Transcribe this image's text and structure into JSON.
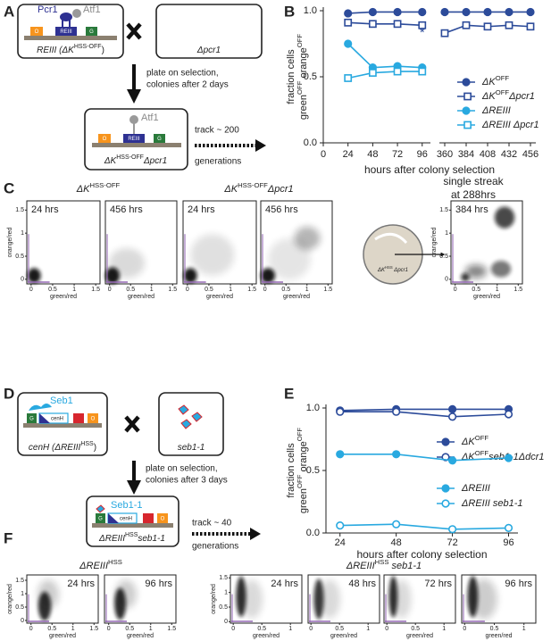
{
  "panel_labels": [
    "A",
    "B",
    "C",
    "D",
    "E",
    "F"
  ],
  "panel_a": {
    "proteins": [
      "Pcr1",
      "Atf1"
    ],
    "genes": [
      "O",
      "REIII",
      "G"
    ],
    "strain1": [
      {
        "text": "REIII (",
        "italic": true
      },
      {
        "text": "ΔK",
        "italic": true
      },
      {
        "text": "HSS-OFF",
        "sup": true
      },
      {
        "text": ")"
      }
    ],
    "strain2": [
      {
        "text": "Δpcr1",
        "italic": true
      }
    ],
    "step": [
      "plate on selection,",
      "colonies after 2 days"
    ],
    "result_protein": "Atf1",
    "result_genes": [
      "O",
      "REIII",
      "G"
    ],
    "result_strain": [
      {
        "text": "ΔK",
        "italic": true
      },
      {
        "text": "HSS-OFF",
        "sup": true
      },
      {
        "text": "Δpcr1",
        "italic": true
      }
    ],
    "track": [
      "track ~ 200",
      "generations"
    ]
  },
  "panel_c": {
    "headers": [
      [
        {
          "text": "ΔK",
          "italic": true
        },
        {
          "text": "HSS-OFF",
          "sup": true
        }
      ],
      [
        {
          "text": "ΔK",
          "italic": true
        },
        {
          "text": "HSS-OFF",
          "sup": true
        },
        {
          "text": "Δpcr1",
          "italic": true
        }
      ]
    ],
    "streak": [
      "single streak",
      "at 288hrs"
    ],
    "dish_label": [
      {
        "text": "ΔK",
        "italic": true
      },
      {
        "text": "HSS",
        "sup": true
      },
      {
        "text": " Δpcr1",
        "italic": true
      }
    ]
  },
  "panel_d": {
    "proteins": [
      "Seb1"
    ],
    "genes": [
      "G",
      "cenH",
      "O"
    ],
    "strain1": [
      {
        "text": "cenH (",
        "italic": true
      },
      {
        "text": "ΔREIII",
        "italic": true
      },
      {
        "text": "HSS",
        "sup": true
      },
      {
        "text": ")"
      }
    ],
    "strain2": [
      {
        "text": "seb1-1",
        "italic": true
      }
    ],
    "step": [
      "plate on selection,",
      "colonies after 3 days"
    ],
    "result_protein": "Seb1-1",
    "result_genes": [
      "G",
      "cenH",
      "O"
    ],
    "result_strain": [
      {
        "text": "ΔREIII",
        "italic": true
      },
      {
        "text": "HSS",
        "sup": true
      },
      {
        "text": "seb1-1",
        "italic": true
      }
    ],
    "track": [
      "track ~ 40",
      "generations"
    ]
  },
  "panel_f": {
    "headers": [
      [
        {
          "text": "ΔREIII",
          "italic": true
        },
        {
          "text": "HSS",
          "sup": true
        }
      ],
      [
        {
          "text": "ΔREIII",
          "italic": true
        },
        {
          "text": "HSS",
          "sup": true
        },
        {
          "text": " seb1-1",
          "italic": true
        }
      ]
    ]
  },
  "chart_data": [
    {
      "type": "line",
      "x": [
        24,
        48,
        72,
        96,
        360,
        384,
        408,
        432,
        456
      ],
      "x_segments": [
        {
          "xlim": [
            0,
            104
          ],
          "xticks": [
            0,
            24,
            48,
            72,
            96
          ]
        },
        {
          "xlim": [
            354,
            462
          ],
          "xticks": [
            360,
            384,
            408,
            432,
            456
          ]
        }
      ],
      "ylim": [
        0,
        1
      ],
      "yticks": [
        {
          "value": 0,
          "label": "0.0"
        },
        {
          "value": 0.5,
          "label": "0.5"
        },
        {
          "value": 1,
          "label": "1.0"
        }
      ],
      "xlabel": "hours after colony selection",
      "ylabel": [
        [
          {
            "text": "fraction cells"
          }
        ],
        [
          {
            "text": "green"
          },
          {
            "text": "OFF",
            "sup": true
          },
          {
            "text": " orange"
          },
          {
            "text": "OFF",
            "sup": true
          }
        ]
      ],
      "legend": "right",
      "series": [
        {
          "name": [
            {
              "text": "ΔK",
              "italic": true
            },
            {
              "text": "OFF",
              "sup": true
            }
          ],
          "color": "#2c4b9a",
          "marker": "circle",
          "filled": true,
          "values": [
            0.98,
            0.99,
            0.99,
            0.99,
            0.99,
            0.99,
            0.99,
            0.99,
            0.99
          ]
        },
        {
          "name": [
            {
              "text": "ΔK",
              "italic": true
            },
            {
              "text": "OFF",
              "sup": true
            },
            {
              "text": "Δpcr1",
              "italic": true
            }
          ],
          "color": "#2c4b9a",
          "marker": "square",
          "filled": false,
          "values": [
            0.91,
            0.9,
            0.9,
            0.89,
            0.83,
            0.89,
            0.88,
            0.89,
            0.88
          ]
        },
        {
          "name": [
            {
              "text": "ΔREIII",
              "italic": true
            }
          ],
          "color": "#29a9e0",
          "marker": "circle",
          "filled": true,
          "values": [
            0.75,
            0.57,
            0.58,
            0.57,
            null,
            null,
            null,
            null,
            null
          ]
        },
        {
          "name": [
            {
              "text": "ΔREIII Δpcr1",
              "italic": true
            }
          ],
          "color": "#29a9e0",
          "marker": "square",
          "filled": false,
          "values": [
            0.49,
            0.53,
            0.54,
            0.54,
            null,
            null,
            null,
            null,
            null
          ]
        }
      ],
      "annotations": [
        {
          "text": "*",
          "x": 96,
          "y": 0.85
        }
      ]
    },
    {
      "type": "line",
      "x": [
        24,
        48,
        72,
        96
      ],
      "xlim": [
        18,
        100
      ],
      "xticks": [
        24,
        48,
        72,
        96
      ],
      "ylim": [
        0,
        1
      ],
      "yticks": [
        {
          "value": 0,
          "label": "0.0"
        },
        {
          "value": 0.5,
          "label": "0.5"
        },
        {
          "value": 1,
          "label": "1.0"
        }
      ],
      "xlabel": "hours after colony selection",
      "ylabel": [
        [
          {
            "text": "fraction cells"
          }
        ],
        [
          {
            "text": "green"
          },
          {
            "text": "OFF",
            "sup": true
          },
          {
            "text": " orange"
          },
          {
            "text": "OFF",
            "sup": true
          }
        ]
      ],
      "legend": "right",
      "series": [
        {
          "name": [
            {
              "text": "ΔK",
              "italic": true
            },
            {
              "text": "OFF",
              "sup": true
            }
          ],
          "color": "#2c4b9a",
          "marker": "circle",
          "filled": true,
          "values": [
            0.98,
            0.99,
            0.99,
            0.99
          ]
        },
        {
          "name": [
            {
              "text": "ΔK",
              "italic": true
            },
            {
              "text": "OFF",
              "sup": true
            },
            {
              "text": "seb1-1Δdcr1",
              "italic": true
            }
          ],
          "color": "#2c4b9a",
          "marker": "circle",
          "filled": false,
          "values": [
            0.97,
            0.97,
            0.93,
            0.95
          ]
        },
        {
          "name": [
            {
              "text": "ΔREIII",
              "italic": true
            }
          ],
          "color": "#29a9e0",
          "marker": "circle",
          "filled": true,
          "values": [
            0.63,
            0.63,
            0.58,
            0.6
          ]
        },
        {
          "name": [
            {
              "text": "ΔREIII seb1-1",
              "italic": true
            }
          ],
          "color": "#29a9e0",
          "marker": "circle",
          "filled": false,
          "values": [
            0.06,
            0.07,
            0.03,
            0.04
          ]
        }
      ]
    },
    {
      "type": "density",
      "annotation": "24 hrs",
      "xlim": [
        -0.1,
        1.6
      ],
      "xticks": [
        0,
        0.5,
        1,
        1.5
      ],
      "ylim": [
        -0.1,
        1.7
      ],
      "yticks": [
        0,
        0.5,
        1,
        1.5
      ],
      "xlabel": "green/red",
      "ylabel": "orange/red"
    },
    {
      "type": "density",
      "annotation": "456 hrs",
      "xlim": [
        -0.1,
        1.6
      ],
      "xticks": [
        0,
        0.5,
        1,
        1.5
      ],
      "ylim": [
        -0.1,
        1.7
      ],
      "xlabel": "green/red"
    },
    {
      "type": "density",
      "annotation": "24 hrs",
      "xlim": [
        -0.1,
        1.6
      ],
      "xticks": [
        0,
        0.5,
        1,
        1.5
      ],
      "ylim": [
        -0.1,
        1.7
      ],
      "xlabel": "green/red"
    },
    {
      "type": "density",
      "annotation": "456 hrs",
      "xlim": [
        -0.1,
        1.6
      ],
      "xticks": [
        0,
        0.5,
        1,
        1.5
      ],
      "ylim": [
        -0.1,
        1.7
      ],
      "xlabel": "green/red"
    },
    {
      "type": "density",
      "annotation": "384 hrs",
      "xlim": [
        -0.1,
        1.6
      ],
      "xticks": [
        0,
        0.5,
        1,
        1.5
      ],
      "ylim": [
        -0.1,
        1.7
      ],
      "yticks": [
        0,
        0.5,
        1,
        1.5
      ],
      "xlabel": "green/red",
      "ylabel": "orange/red"
    },
    {
      "type": "density",
      "annotation": "24 hrs",
      "xlim": [
        -0.1,
        1.6
      ],
      "xticks": [
        0,
        0.5,
        1,
        1.5
      ],
      "ylim": [
        -0.1,
        1.7
      ],
      "yticks": [
        0,
        0.5,
        1,
        1.5
      ],
      "xlabel": "green/red",
      "ylabel": "orange/red"
    },
    {
      "type": "density",
      "annotation": "96 hrs",
      "xlim": [
        -0.1,
        1.6
      ],
      "xticks": [
        0,
        0.5,
        1,
        1.5
      ],
      "ylim": [
        -0.1,
        1.7
      ],
      "xlabel": "green/red"
    },
    {
      "type": "density",
      "annotation": "24 hrs",
      "xlim": [
        -0.05,
        1.2
      ],
      "xticks": [
        0,
        0.5,
        1
      ],
      "ylim": [
        -0.05,
        1.6
      ],
      "yticks": [
        0,
        0.5,
        1,
        1.5
      ],
      "xlabel": "green/red",
      "ylabel": "orange/red"
    },
    {
      "type": "density",
      "annotation": "48 hrs",
      "xlim": [
        -0.05,
        1.2
      ],
      "xticks": [
        0,
        0.5,
        1
      ],
      "ylim": [
        -0.05,
        1.6
      ],
      "xlabel": "green/red"
    },
    {
      "type": "density",
      "annotation": "72 hrs",
      "xlim": [
        -0.05,
        1.2
      ],
      "xticks": [
        0,
        0.5,
        1
      ],
      "ylim": [
        -0.05,
        1.6
      ],
      "xlabel": "green/red"
    },
    {
      "type": "density",
      "annotation": "96 hrs",
      "xlim": [
        -0.05,
        1.2
      ],
      "xticks": [
        0,
        0.5,
        1
      ],
      "ylim": [
        -0.05,
        1.6
      ],
      "xlabel": "green/red"
    }
  ]
}
